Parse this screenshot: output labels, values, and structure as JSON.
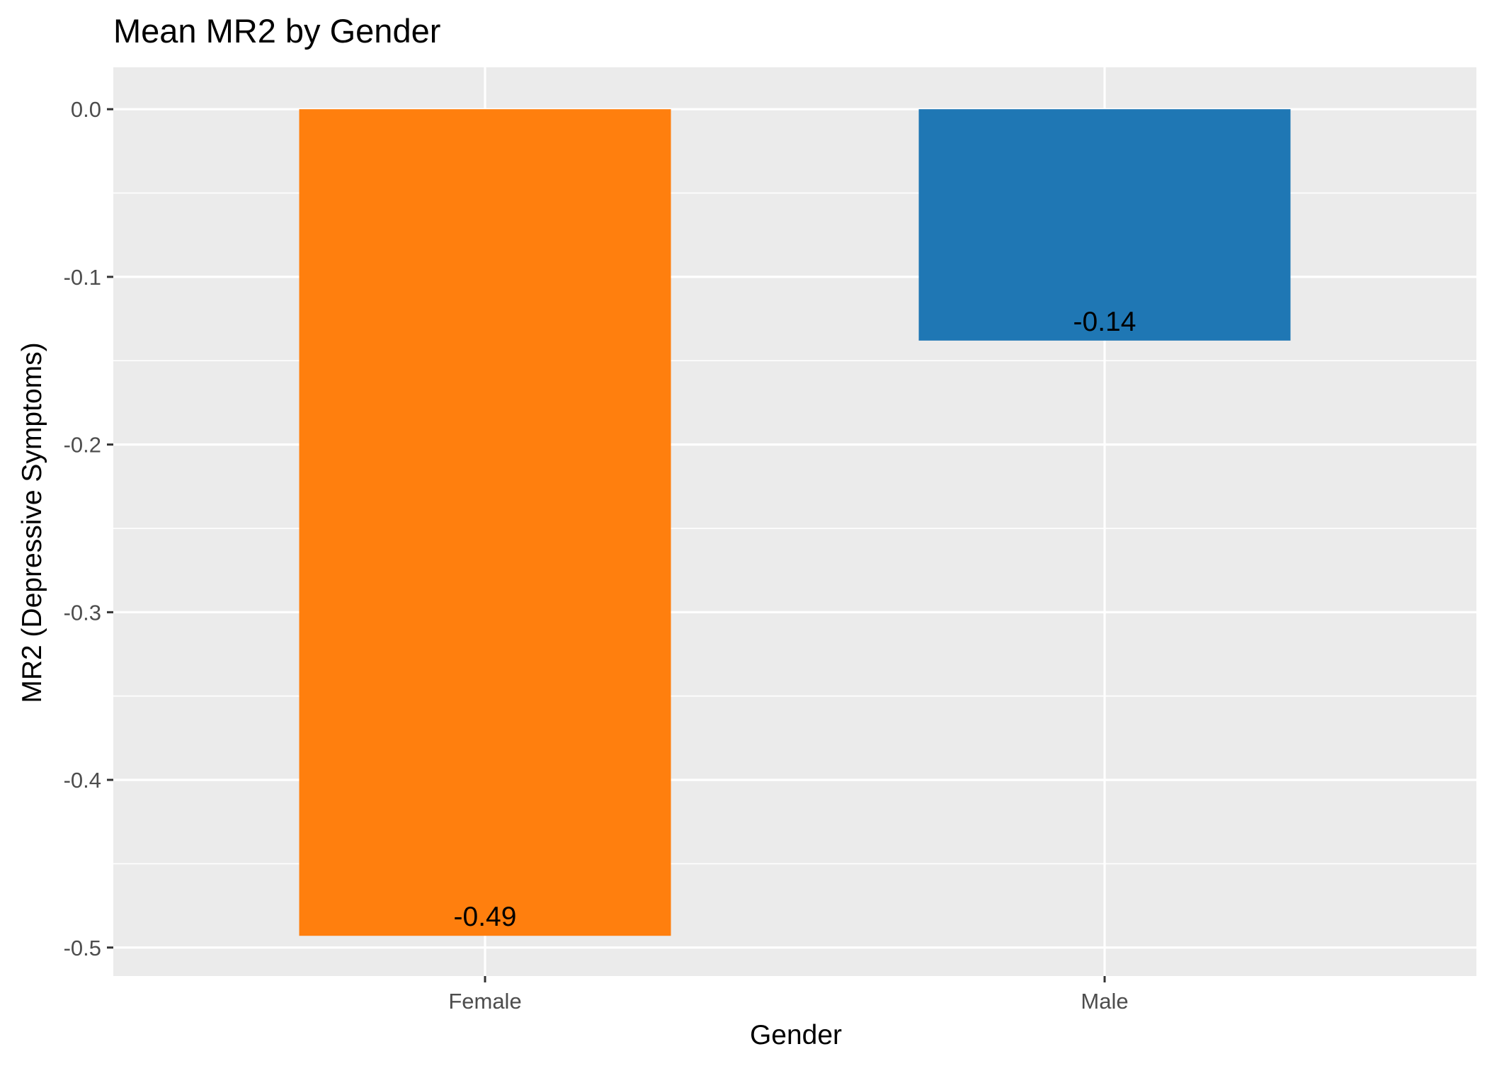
{
  "chart_data": {
    "type": "bar",
    "title": "Mean MR2 by Gender",
    "xlabel": "Gender",
    "ylabel": "MR2 (Depressive Symptoms)",
    "categories": [
      "Female",
      "Male"
    ],
    "values": [
      -0.493,
      -0.138
    ],
    "value_labels": [
      "-0.49",
      "-0.14"
    ],
    "colors": [
      "#ff7f0e",
      "#1f77b4"
    ],
    "ylim": [
      -0.517,
      0.025
    ],
    "yticks": [
      0.0,
      -0.1,
      -0.2,
      -0.3,
      -0.4,
      -0.5
    ],
    "ytick_labels": [
      "0.0",
      "-0.1",
      "-0.2",
      "-0.3",
      "-0.4",
      "-0.5"
    ],
    "grid": true,
    "legend": "none",
    "panel_background": "#ebebeb",
    "grid_color": "#ffffff"
  }
}
